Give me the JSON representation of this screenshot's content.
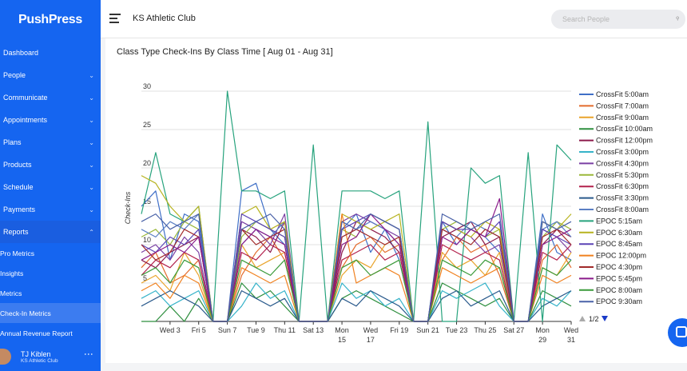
{
  "app": {
    "logo": "PushPress",
    "club_name": "KS Athletic Club"
  },
  "search": {
    "placeholder": "Search People",
    "icon": "search-icon"
  },
  "sidebar": {
    "items": [
      {
        "label": "Dashboard",
        "chevron": false
      },
      {
        "label": "People",
        "chevron": true
      },
      {
        "label": "Communicate",
        "chevron": true
      },
      {
        "label": "Appointments",
        "chevron": true
      },
      {
        "label": "Plans",
        "chevron": true
      },
      {
        "label": "Products",
        "chevron": true
      },
      {
        "label": "Schedule",
        "chevron": true
      },
      {
        "label": "Payments",
        "chevron": true
      },
      {
        "label": "Reports",
        "chevron": true
      }
    ],
    "submenu": [
      "Pro Metrics",
      "Insights",
      "Metrics",
      "Check-In Metrics",
      "Annual Revenue Report"
    ],
    "active_submenu": "Check-In Metrics",
    "user": {
      "name": "TJ Kiblen",
      "club": "KS Athletic Club"
    }
  },
  "chart_title": "Class Type Check-Ins By Class Time [ Aug 01 - Aug 31]",
  "colors": {
    "brand": "#1565f0",
    "grid": "#e0e0e0"
  },
  "chart_data": {
    "type": "line",
    "ylabel": "Check-Ins",
    "ylim": [
      0,
      30
    ],
    "yticks": [
      5,
      10,
      15,
      20,
      25,
      30
    ],
    "x_tick_labels": [
      {
        "day": 3,
        "label": [
          "Wed 3"
        ]
      },
      {
        "day": 5,
        "label": [
          "Fri 5"
        ]
      },
      {
        "day": 7,
        "label": [
          "Sun 7"
        ]
      },
      {
        "day": 9,
        "label": [
          "Tue 9"
        ]
      },
      {
        "day": 11,
        "label": [
          "Thu 11"
        ]
      },
      {
        "day": 13,
        "label": [
          "Sat 13"
        ]
      },
      {
        "day": 15,
        "label": [
          "Mon",
          "15"
        ]
      },
      {
        "day": 17,
        "label": [
          "Wed",
          "17"
        ]
      },
      {
        "day": 19,
        "label": [
          "Fri 19"
        ]
      },
      {
        "day": 21,
        "label": [
          "Sun 21"
        ]
      },
      {
        "day": 23,
        "label": [
          "Tue 23"
        ]
      },
      {
        "day": 25,
        "label": [
          "Thu 25"
        ]
      },
      {
        "day": 27,
        "label": [
          "Sat 27"
        ]
      },
      {
        "day": 29,
        "label": [
          "Mon",
          "29"
        ]
      },
      {
        "day": 31,
        "label": [
          "Wed",
          "31"
        ]
      }
    ],
    "x_days": [
      1,
      2,
      3,
      4,
      5,
      6,
      7,
      8,
      9,
      10,
      11,
      12,
      13,
      14,
      15,
      16,
      17,
      18,
      19,
      20,
      21,
      22,
      23,
      24,
      25,
      26,
      27,
      28,
      29,
      30,
      31
    ],
    "legend_page": "1/2",
    "series": [
      {
        "name": "CrossFit 5:00am",
        "color": "#3f6fc7",
        "values": [
          15,
          17,
          8,
          14,
          13,
          0,
          0,
          17,
          18,
          12,
          10,
          0,
          0,
          0,
          12,
          14,
          9,
          12,
          8,
          0,
          0,
          13,
          10,
          12,
          11,
          9,
          0,
          0,
          14,
          9,
          8
        ]
      },
      {
        "name": "CrossFit 7:00am",
        "color": "#e36b2c",
        "values": [
          7,
          9,
          5,
          6,
          8,
          0,
          0,
          6,
          9,
          11,
          8,
          0,
          0,
          0,
          7,
          10,
          11,
          9,
          10,
          0,
          0,
          8,
          11,
          9,
          10,
          6,
          0,
          0,
          8,
          10,
          7
        ]
      },
      {
        "name": "CrossFit 9:00am",
        "color": "#e9a42b",
        "values": [
          5,
          6,
          4,
          9,
          6,
          0,
          0,
          10,
          7,
          8,
          9,
          0,
          0,
          0,
          6,
          8,
          7,
          10,
          11,
          0,
          0,
          9,
          7,
          8,
          6,
          9,
          0,
          0,
          7,
          6,
          9
        ]
      },
      {
        "name": "CrossFit 10:00am",
        "color": "#2f8f3f",
        "values": [
          0,
          0,
          2,
          0,
          3,
          0,
          0,
          5,
          3,
          4,
          2,
          0,
          0,
          0,
          3,
          4,
          3,
          2,
          1,
          0,
          0,
          5,
          4,
          3,
          2,
          3,
          0,
          0,
          4,
          3,
          2
        ]
      },
      {
        "name": "CrossFit 12:00pm",
        "color": "#8c1a4b",
        "values": [
          8,
          7,
          9,
          10,
          11,
          0,
          0,
          12,
          11,
          9,
          13,
          0,
          0,
          0,
          9,
          13,
          12,
          11,
          9,
          0,
          0,
          11,
          12,
          13,
          10,
          11,
          0,
          0,
          10,
          12,
          11
        ]
      },
      {
        "name": "CrossFit 3:00pm",
        "color": "#36b3c9",
        "values": [
          3,
          4,
          2,
          3,
          4,
          0,
          0,
          2,
          5,
          3,
          4,
          0,
          0,
          0,
          5,
          3,
          4,
          2,
          3,
          0,
          0,
          4,
          3,
          4,
          5,
          2,
          0,
          0,
          3,
          2,
          4
        ]
      },
      {
        "name": "CrossFit 4:30pm",
        "color": "#7a3fa3",
        "values": [
          9,
          10,
          8,
          11,
          9,
          0,
          0,
          13,
          12,
          10,
          14,
          0,
          0,
          0,
          13,
          14,
          13,
          12,
          11,
          0,
          0,
          13,
          12,
          11,
          9,
          10,
          0,
          0,
          12,
          11,
          9
        ]
      },
      {
        "name": "CrossFit 5:30pm",
        "color": "#9bb83a",
        "values": [
          11,
          12,
          10,
          13,
          12,
          0,
          0,
          11,
          13,
          12,
          11,
          0,
          0,
          0,
          12,
          11,
          14,
          13,
          12,
          0,
          0,
          12,
          13,
          12,
          11,
          12,
          0,
          0,
          11,
          13,
          12
        ]
      },
      {
        "name": "CrossFit 6:30pm",
        "color": "#b3224d",
        "values": [
          6,
          8,
          7,
          9,
          8,
          0,
          0,
          9,
          8,
          10,
          9,
          0,
          0,
          0,
          8,
          9,
          10,
          8,
          9,
          0,
          0,
          10,
          9,
          8,
          9,
          8,
          0,
          0,
          9,
          8,
          10
        ]
      },
      {
        "name": "CrossFit 3:30pm",
        "color": "#2a5a8c",
        "values": [
          2,
          3,
          4,
          3,
          2,
          0,
          0,
          4,
          3,
          2,
          3,
          0,
          0,
          0,
          3,
          2,
          4,
          3,
          2,
          0,
          0,
          3,
          4,
          2,
          3,
          4,
          0,
          0,
          2,
          3,
          4
        ]
      },
      {
        "name": "CrossFit 8:00am",
        "color": "#5b7fc4",
        "values": [
          12,
          11,
          13,
          12,
          14,
          0,
          0,
          10,
          12,
          11,
          13,
          0,
          0,
          0,
          11,
          12,
          13,
          12,
          10,
          0,
          0,
          12,
          11,
          13,
          12,
          11,
          0,
          0,
          12,
          13,
          11
        ]
      },
      {
        "name": "EPOC 5:15am",
        "color": "#27a37d",
        "values": [
          14,
          22,
          14,
          13,
          15,
          0,
          30,
          17,
          17,
          16,
          17,
          0,
          23,
          0,
          17,
          17,
          17,
          16,
          17,
          0,
          26,
          0,
          0,
          20,
          18,
          19,
          0,
          22,
          0,
          23,
          21
        ]
      },
      {
        "name": "EPOC 6:30am",
        "color": "#b7b31f",
        "values": [
          19,
          18,
          15,
          13,
          15,
          0,
          0,
          14,
          15,
          12,
          13,
          0,
          0,
          0,
          14,
          13,
          12,
          13,
          14,
          0,
          0,
          13,
          12,
          11,
          13,
          12,
          0,
          0,
          13,
          12,
          14
        ]
      },
      {
        "name": "EPOC 8:45am",
        "color": "#5a43b5",
        "values": [
          10,
          9,
          11,
          10,
          12,
          0,
          0,
          14,
          13,
          12,
          11,
          0,
          0,
          0,
          12,
          13,
          14,
          13,
          12,
          0,
          0,
          13,
          12,
          12,
          11,
          13,
          0,
          0,
          12,
          11,
          10
        ]
      },
      {
        "name": "EPOC 12:00pm",
        "color": "#f0811f",
        "values": [
          4,
          5,
          3,
          6,
          5,
          0,
          0,
          7,
          6,
          5,
          6,
          0,
          0,
          0,
          14,
          5,
          6,
          7,
          6,
          0,
          0,
          7,
          6,
          5,
          6,
          7,
          0,
          0,
          6,
          5,
          6
        ]
      },
      {
        "name": "EPOC 4:30pm",
        "color": "#a12a2a",
        "values": [
          10,
          8,
          9,
          12,
          11,
          0,
          0,
          12,
          10,
          11,
          12,
          0,
          0,
          0,
          11,
          12,
          11,
          10,
          11,
          0,
          0,
          12,
          11,
          10,
          12,
          11,
          0,
          0,
          11,
          12,
          10
        ]
      },
      {
        "name": "EPOC 5:45pm",
        "color": "#8a1a8a",
        "values": [
          8,
          9,
          10,
          9,
          11,
          0,
          0,
          10,
          12,
          11,
          10,
          0,
          0,
          0,
          10,
          11,
          14,
          12,
          10,
          0,
          0,
          11,
          10,
          12,
          11,
          16,
          0,
          0,
          10,
          11,
          12
        ]
      },
      {
        "name": "EPOC 8:00am",
        "color": "#3a9a3a",
        "values": [
          6,
          7,
          5,
          8,
          7,
          0,
          0,
          8,
          7,
          6,
          8,
          0,
          0,
          0,
          7,
          8,
          6,
          7,
          8,
          0,
          0,
          8,
          7,
          6,
          8,
          7,
          0,
          0,
          7,
          6,
          8
        ]
      },
      {
        "name": "EPOC 9:30am",
        "color": "#4a62a8",
        "values": [
          13,
          14,
          12,
          13,
          14,
          0,
          0,
          12,
          13,
          14,
          12,
          0,
          0,
          0,
          13,
          12,
          14,
          13,
          12,
          0,
          0,
          14,
          13,
          12,
          13,
          14,
          0,
          0,
          13,
          12,
          13
        ]
      }
    ]
  }
}
